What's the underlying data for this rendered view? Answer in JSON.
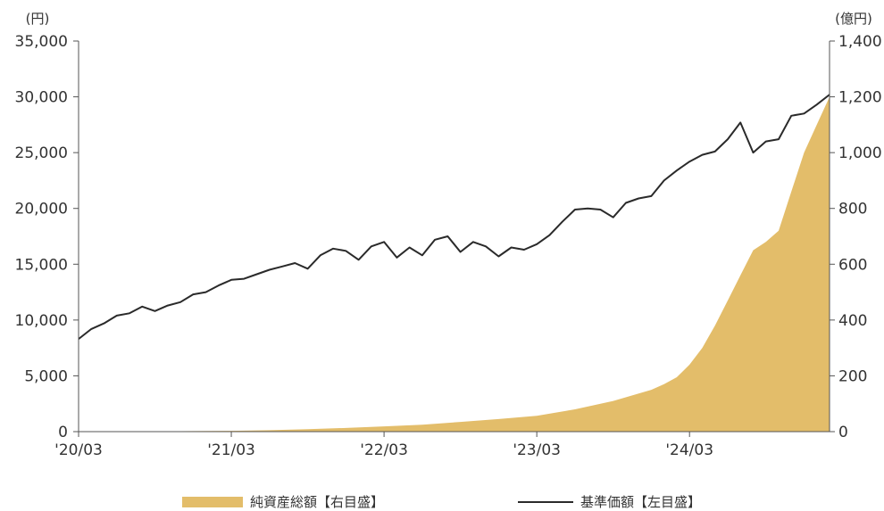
{
  "chart_data": {
    "type": "line+area",
    "left_axis": {
      "unit": "(円)",
      "ylim": [
        0,
        35000
      ],
      "ticks": [
        0,
        5000,
        10000,
        15000,
        20000,
        25000,
        30000,
        35000
      ],
      "tick_labels": [
        "0",
        "5,000",
        "10,000",
        "15,000",
        "20,000",
        "25,000",
        "30,000",
        "35,000"
      ]
    },
    "right_axis": {
      "unit": "(億円)",
      "ylim": [
        0,
        1400
      ],
      "ticks": [
        0,
        200,
        400,
        600,
        800,
        1000,
        1200,
        1400
      ],
      "tick_labels": [
        "0",
        "200",
        "400",
        "600",
        "800",
        "1,000",
        "1,200",
        "1,400"
      ]
    },
    "x_axis": {
      "range": [
        "2020-03",
        "2025-02"
      ],
      "tick_labels": [
        "'20/03",
        "'21/03",
        "'22/03",
        "'23/03",
        "'24/03"
      ],
      "tick_dates": [
        "2020-03",
        "2021-03",
        "2022-03",
        "2023-03",
        "2024-03"
      ]
    },
    "series": [
      {
        "name": "純資産総額【右目盛】",
        "type": "area",
        "axis": "right",
        "color": "#e3bd6a",
        "x": [
          "2020-03",
          "2020-06",
          "2020-09",
          "2020-12",
          "2021-03",
          "2021-06",
          "2021-09",
          "2021-12",
          "2022-03",
          "2022-06",
          "2022-09",
          "2022-12",
          "2023-03",
          "2023-06",
          "2023-09",
          "2023-12",
          "2024-01",
          "2024-02",
          "2024-03",
          "2024-04",
          "2024-05",
          "2024-06",
          "2024-07",
          "2024-08",
          "2024-09",
          "2024-10",
          "2024-11",
          "2024-12",
          "2025-01",
          "2025-02"
        ],
        "values": [
          0,
          0,
          1,
          2,
          3,
          5,
          9,
          13,
          19,
          25,
          35,
          45,
          57,
          80,
          110,
          150,
          170,
          195,
          240,
          300,
          380,
          470,
          560,
          650,
          680,
          720,
          860,
          1000,
          1100,
          1200
        ]
      },
      {
        "name": "基準価額【左目盛】",
        "type": "line",
        "axis": "left",
        "color": "#2a2a2a",
        "x": [
          "2020-03",
          "2020-04",
          "2020-05",
          "2020-06",
          "2020-07",
          "2020-08",
          "2020-09",
          "2020-10",
          "2020-11",
          "2020-12",
          "2021-01",
          "2021-02",
          "2021-03",
          "2021-04",
          "2021-05",
          "2021-06",
          "2021-07",
          "2021-08",
          "2021-09",
          "2021-10",
          "2021-11",
          "2021-12",
          "2022-01",
          "2022-02",
          "2022-03",
          "2022-04",
          "2022-05",
          "2022-06",
          "2022-07",
          "2022-08",
          "2022-09",
          "2022-10",
          "2022-11",
          "2022-12",
          "2023-01",
          "2023-02",
          "2023-03",
          "2023-04",
          "2023-05",
          "2023-06",
          "2023-07",
          "2023-08",
          "2023-09",
          "2023-10",
          "2023-11",
          "2023-12",
          "2024-01",
          "2024-02",
          "2024-03",
          "2024-04",
          "2024-05",
          "2024-06",
          "2024-07",
          "2024-08",
          "2024-09",
          "2024-10",
          "2024-11",
          "2024-12",
          "2025-01",
          "2025-02"
        ],
        "values": [
          8300,
          9200,
          9700,
          10400,
          10600,
          11200,
          10800,
          11300,
          11600,
          12300,
          12500,
          13100,
          13600,
          13700,
          14100,
          14500,
          14800,
          15100,
          14600,
          15800,
          16400,
          16200,
          15400,
          16600,
          17000,
          15600,
          16500,
          15800,
          17200,
          17500,
          16100,
          17000,
          16600,
          15700,
          16500,
          16300,
          16800,
          17600,
          18800,
          19900,
          20000,
          19900,
          19200,
          20500,
          20900,
          21100,
          22500,
          23400,
          24200,
          24800,
          25100,
          26200,
          27700,
          25000,
          26000,
          26200,
          28300,
          28500,
          29300,
          30200
        ]
      }
    ]
  }
}
